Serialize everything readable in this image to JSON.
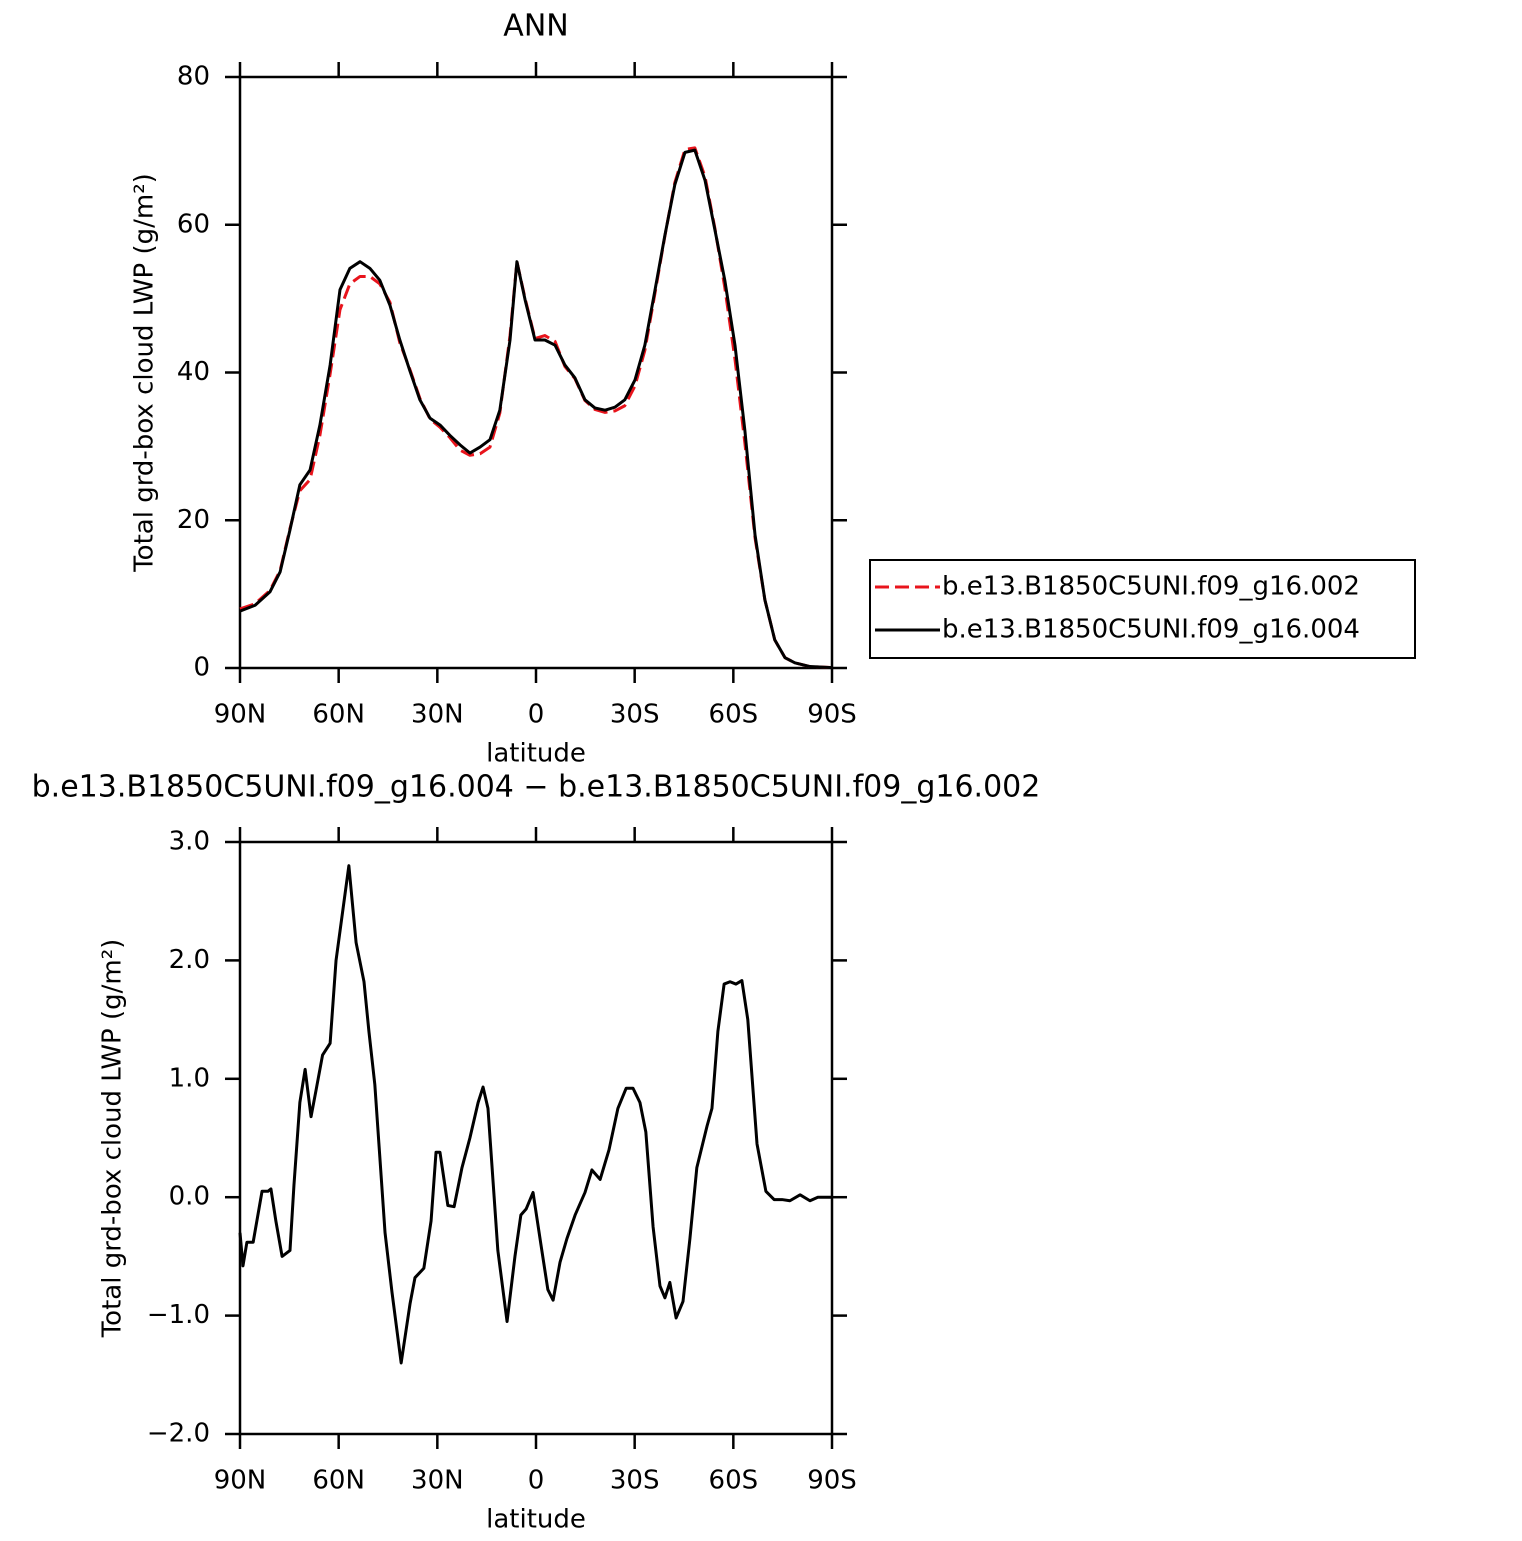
{
  "chart_data": [
    {
      "type": "line",
      "title": "ANN",
      "x_label": "latitude",
      "y_label": "Total grd-box cloud LWP (g/m²)",
      "x": [
        90,
        85.4,
        80.9,
        77.8,
        74.8,
        71.8,
        68.7,
        65.7,
        62.6,
        59.6,
        56.6,
        53.5,
        50.5,
        47.5,
        44.4,
        41.4,
        38.4,
        35.3,
        32.2,
        29.2,
        26.2,
        23.1,
        20.1,
        17.0,
        14.0,
        11.0,
        7.9,
        5.8,
        3.3,
        0.3,
        -2.7,
        -5.8,
        -8.8,
        -11.8,
        -14.9,
        -17.9,
        -21.0,
        -24.0,
        -27.0,
        -30.1,
        -33.1,
        -36.2,
        -39.2,
        -42.2,
        -45.3,
        -48.3,
        -51.4,
        -54.4,
        -57.4,
        -60.5,
        -63.5,
        -66.6,
        -69.6,
        -72.6,
        -75.7,
        -78.7,
        -83.3,
        -90
      ],
      "series": [
        {
          "name": "b.e13.B1850C5UNI.f09_g16.002",
          "color": "#e8141c",
          "line_style": "dashed",
          "values": [
            8.0,
            8.7,
            10.5,
            13.2,
            18.9,
            24,
            25.5,
            31.5,
            39.8,
            48.5,
            52,
            53,
            53,
            52,
            49.5,
            44,
            40.5,
            36.5,
            33.7,
            32.6,
            31.2,
            29.5,
            28.8,
            29.0,
            29.9,
            34.5,
            45,
            55,
            50,
            44.6,
            45,
            44.2,
            40.8,
            39.2,
            36.2,
            35,
            34.6,
            34.8,
            35.5,
            38.2,
            43,
            50.8,
            58.5,
            65.7,
            70.2,
            70.4,
            66.5,
            59.5,
            51.5,
            41.8,
            30.5,
            17.6,
            9.2,
            3.8,
            1.4,
            0.7,
            0.2,
            0.05
          ]
        },
        {
          "name": "b.e13.B1850C5UNI.f09_g16.004",
          "color": "#000000",
          "line_style": "solid",
          "values": [
            7.7,
            8.5,
            10.3,
            13,
            18.7,
            24.8,
            26.8,
            32.9,
            41,
            51.2,
            54.1,
            55,
            54.1,
            52.5,
            49.1,
            44.4,
            40.3,
            36.3,
            33.8,
            32.9,
            31.5,
            30.2,
            29.1,
            29.9,
            30.9,
            34.9,
            44.4,
            55,
            49.8,
            44.4,
            44.4,
            43.7,
            41,
            39.3,
            36.3,
            35.2,
            34.9,
            35.3,
            36.3,
            39,
            43.7,
            51.2,
            58.6,
            65.4,
            69.8,
            70.1,
            66,
            59.3,
            52.5,
            43.7,
            32.2,
            18,
            9.2,
            3.8,
            1.4,
            0.7,
            0.2,
            0.05
          ]
        }
      ],
      "xlim": [
        90,
        -90
      ],
      "xticks": [
        {
          "value": 90,
          "label": "90N"
        },
        {
          "value": 60,
          "label": "60N"
        },
        {
          "value": 30,
          "label": "30N"
        },
        0,
        {
          "value": -30,
          "label": "30S"
        },
        {
          "value": -60,
          "label": "60S"
        },
        {
          "value": -90,
          "label": "90S"
        }
      ],
      "ylim": [
        0,
        80
      ],
      "yticks": [
        0,
        20,
        40,
        60,
        80
      ],
      "legend": "right"
    },
    {
      "type": "line",
      "title": "b.e13.B1850C5UNI.f09_g16.004 − b.e13.B1850C5UNI.f09_g16.002",
      "x_label": "latitude",
      "y_label": "Total grd-box cloud LWP (g/m²)",
      "x": [
        90,
        89.1,
        87.9,
        86.0,
        83.3,
        81.5,
        80.6,
        79.1,
        77.2,
        74.8,
        73.6,
        71.8,
        70.2,
        68.4,
        66.9,
        64.9,
        62.6,
        60.8,
        56.9,
        54.7,
        52.3,
        50.8,
        49.0,
        45.9,
        43.8,
        41.0,
        38.3,
        36.8,
        34.1,
        31.9,
        30.4,
        29.2,
        26.8,
        24.9,
        22.5,
        20.1,
        17.6,
        16.1,
        14.6,
        11.6,
        8.8,
        6.4,
        4.6,
        3.0,
        0.9,
        -1.5,
        -3.6,
        -5.2,
        -7.3,
        -9.4,
        -11.9,
        -14.9,
        -17.0,
        -19.5,
        -22.2,
        -24.9,
        -27.4,
        -29.5,
        -31.6,
        -33.4,
        -35.6,
        -37.7,
        -39.2,
        -40.7,
        -42.6,
        -44.7,
        -46.8,
        -48.9,
        -52.0,
        -53.5,
        -55.3,
        -57.2,
        -59.0,
        -60.8,
        -62.6,
        -64.4,
        -67.2,
        -69.9,
        -72.4,
        -74.8,
        -77.2,
        -80.3,
        -83.3,
        -85.7,
        -90
      ],
      "values": [
        -0.3,
        -0.58,
        -0.38,
        -0.38,
        0.05,
        0.05,
        0.07,
        -0.2,
        -0.5,
        -0.45,
        0.1,
        0.8,
        1.08,
        0.68,
        0.9,
        1.2,
        1.3,
        2.0,
        2.8,
        2.15,
        1.82,
        1.4,
        0.95,
        -0.3,
        -0.8,
        -1.4,
        -0.9,
        -0.68,
        -0.6,
        -0.2,
        0.38,
        0.38,
        -0.07,
        -0.08,
        0.25,
        0.5,
        0.8,
        0.93,
        0.75,
        -0.45,
        -1.05,
        -0.5,
        -0.15,
        -0.1,
        0.04,
        -0.4,
        -0.78,
        -0.87,
        -0.55,
        -0.35,
        -0.15,
        0.04,
        0.23,
        0.15,
        0.4,
        0.75,
        0.92,
        0.92,
        0.8,
        0.55,
        -0.25,
        -0.75,
        -0.85,
        -0.72,
        -1.02,
        -0.88,
        -0.35,
        0.25,
        0.6,
        0.75,
        1.4,
        1.8,
        1.82,
        1.8,
        1.83,
        1.5,
        0.45,
        0.05,
        -0.02,
        -0.02,
        -0.03,
        0.02,
        -0.03,
        0.0,
        0.0
      ],
      "color": "#000000",
      "line_style": "solid",
      "xlim": [
        90,
        -90
      ],
      "xticks": [
        {
          "value": 90,
          "label": "90N"
        },
        {
          "value": 60,
          "label": "60N"
        },
        {
          "value": 30,
          "label": "30N"
        },
        0,
        {
          "value": -30,
          "label": "30S"
        },
        {
          "value": -60,
          "label": "60S"
        },
        {
          "value": -90,
          "label": "90S"
        }
      ],
      "ylim": [
        -2,
        3
      ],
      "yticks": [
        {
          "value": -2,
          "label": "−2.0"
        },
        {
          "value": -1,
          "label": "−1.0"
        },
        {
          "value": 0,
          "label": "0.0"
        },
        {
          "value": 1,
          "label": "1.0"
        },
        {
          "value": 2,
          "label": "2.0"
        },
        {
          "value": 3,
          "label": "3.0"
        }
      ]
    }
  ]
}
